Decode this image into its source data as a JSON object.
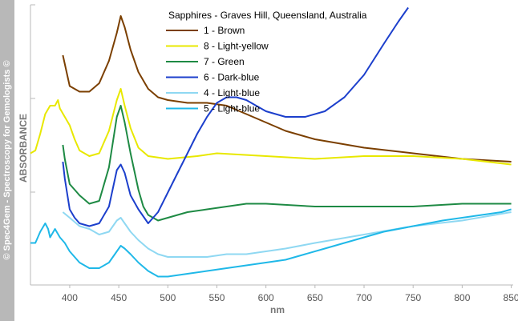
{
  "watermark": "© Spec4Gem - Spectroscopy for Gemologists ©",
  "chart_data": {
    "type": "line",
    "title": "Sapphires - Graves Hill, Queensland, Australia",
    "xlabel": "nm",
    "ylabel": "ABSORBANCE",
    "xlim": [
      360,
      852
    ],
    "ylim": [
      0,
      100
    ],
    "xticks": [
      400,
      450,
      500,
      550,
      600,
      650,
      700,
      750,
      800,
      850
    ],
    "grid": false,
    "legend_position": "top-center",
    "series": [
      {
        "name": "1 - Brown",
        "color": "#7b3f00",
        "points": [
          [
            393,
            82
          ],
          [
            400,
            71
          ],
          [
            410,
            69
          ],
          [
            420,
            69
          ],
          [
            430,
            72
          ],
          [
            440,
            80
          ],
          [
            448,
            90
          ],
          [
            452,
            96
          ],
          [
            456,
            92
          ],
          [
            462,
            84
          ],
          [
            470,
            76
          ],
          [
            480,
            70
          ],
          [
            490,
            67
          ],
          [
            500,
            66
          ],
          [
            520,
            65
          ],
          [
            540,
            65
          ],
          [
            560,
            64
          ],
          [
            580,
            61
          ],
          [
            600,
            58
          ],
          [
            620,
            55
          ],
          [
            650,
            52
          ],
          [
            700,
            49
          ],
          [
            750,
            47
          ],
          [
            800,
            45
          ],
          [
            850,
            44
          ]
        ]
      },
      {
        "name": "8 - Light-yellow",
        "color": "#e8e800",
        "points": [
          [
            360,
            47
          ],
          [
            365,
            48
          ],
          [
            370,
            54
          ],
          [
            375,
            61
          ],
          [
            380,
            64
          ],
          [
            385,
            64
          ],
          [
            388,
            66
          ],
          [
            390,
            63
          ],
          [
            395,
            60
          ],
          [
            400,
            57
          ],
          [
            405,
            52
          ],
          [
            410,
            48
          ],
          [
            420,
            46
          ],
          [
            430,
            47
          ],
          [
            440,
            55
          ],
          [
            448,
            66
          ],
          [
            452,
            70
          ],
          [
            456,
            64
          ],
          [
            462,
            56
          ],
          [
            470,
            49
          ],
          [
            480,
            46
          ],
          [
            500,
            45
          ],
          [
            530,
            46
          ],
          [
            550,
            47
          ],
          [
            600,
            46
          ],
          [
            650,
            45
          ],
          [
            700,
            46
          ],
          [
            750,
            46
          ],
          [
            800,
            45
          ],
          [
            850,
            43
          ]
        ]
      },
      {
        "name": "7 - Green",
        "color": "#1e8a44",
        "points": [
          [
            393,
            50
          ],
          [
            395,
            45
          ],
          [
            400,
            36
          ],
          [
            405,
            34
          ],
          [
            410,
            32
          ],
          [
            420,
            29
          ],
          [
            430,
            30
          ],
          [
            440,
            42
          ],
          [
            448,
            60
          ],
          [
            452,
            64
          ],
          [
            456,
            58
          ],
          [
            462,
            47
          ],
          [
            470,
            34
          ],
          [
            475,
            28
          ],
          [
            480,
            25
          ],
          [
            485,
            24
          ],
          [
            490,
            23
          ],
          [
            500,
            24
          ],
          [
            520,
            26
          ],
          [
            540,
            27
          ],
          [
            560,
            28
          ],
          [
            580,
            29
          ],
          [
            600,
            29
          ],
          [
            650,
            28
          ],
          [
            700,
            28
          ],
          [
            750,
            28
          ],
          [
            800,
            29
          ],
          [
            850,
            29
          ]
        ]
      },
      {
        "name": "6 - Dark-blue",
        "color": "#1c3fcc",
        "points": [
          [
            393,
            44
          ],
          [
            395,
            38
          ],
          [
            400,
            27
          ],
          [
            405,
            24
          ],
          [
            410,
            22
          ],
          [
            420,
            21
          ],
          [
            430,
            22
          ],
          [
            440,
            28
          ],
          [
            448,
            41
          ],
          [
            452,
            43
          ],
          [
            456,
            40
          ],
          [
            462,
            32
          ],
          [
            470,
            27
          ],
          [
            480,
            22
          ],
          [
            490,
            26
          ],
          [
            500,
            33
          ],
          [
            510,
            40
          ],
          [
            520,
            47
          ],
          [
            530,
            54
          ],
          [
            540,
            60
          ],
          [
            550,
            65
          ],
          [
            560,
            67
          ],
          [
            570,
            67
          ],
          [
            580,
            66
          ],
          [
            590,
            64
          ],
          [
            600,
            62
          ],
          [
            620,
            60
          ],
          [
            640,
            60
          ],
          [
            660,
            62
          ],
          [
            680,
            67
          ],
          [
            700,
            75
          ],
          [
            720,
            86
          ],
          [
            735,
            94
          ],
          [
            745,
            99
          ]
        ]
      },
      {
        "name": "4 - Light-blue",
        "color": "#8fd8f2",
        "points": [
          [
            393,
            26
          ],
          [
            400,
            24
          ],
          [
            410,
            21
          ],
          [
            420,
            20
          ],
          [
            430,
            18
          ],
          [
            440,
            19
          ],
          [
            448,
            23
          ],
          [
            452,
            24
          ],
          [
            456,
            22
          ],
          [
            462,
            19
          ],
          [
            470,
            16
          ],
          [
            480,
            13
          ],
          [
            490,
            11
          ],
          [
            500,
            10
          ],
          [
            520,
            10
          ],
          [
            540,
            10
          ],
          [
            560,
            11
          ],
          [
            580,
            11
          ],
          [
            600,
            12
          ],
          [
            620,
            13
          ],
          [
            650,
            15
          ],
          [
            700,
            18
          ],
          [
            750,
            21
          ],
          [
            800,
            23
          ],
          [
            850,
            26
          ]
        ]
      },
      {
        "name": "5 - Light-blue",
        "color": "#1fb8e8",
        "points": [
          [
            360,
            15
          ],
          [
            365,
            15
          ],
          [
            370,
            19
          ],
          [
            375,
            22
          ],
          [
            378,
            20
          ],
          [
            380,
            17
          ],
          [
            385,
            20
          ],
          [
            390,
            17
          ],
          [
            395,
            15
          ],
          [
            400,
            12
          ],
          [
            410,
            8
          ],
          [
            420,
            6
          ],
          [
            430,
            6
          ],
          [
            440,
            8
          ],
          [
            448,
            12
          ],
          [
            452,
            14
          ],
          [
            456,
            13
          ],
          [
            462,
            11
          ],
          [
            470,
            8
          ],
          [
            480,
            5
          ],
          [
            490,
            3
          ],
          [
            500,
            3
          ],
          [
            520,
            4
          ],
          [
            540,
            5
          ],
          [
            560,
            6
          ],
          [
            580,
            7
          ],
          [
            600,
            8
          ],
          [
            620,
            9
          ],
          [
            640,
            11
          ],
          [
            660,
            13
          ],
          [
            680,
            15
          ],
          [
            700,
            17
          ],
          [
            720,
            19
          ],
          [
            750,
            21
          ],
          [
            780,
            23
          ],
          [
            800,
            24
          ],
          [
            820,
            25
          ],
          [
            840,
            26
          ],
          [
            850,
            27
          ]
        ]
      }
    ]
  }
}
